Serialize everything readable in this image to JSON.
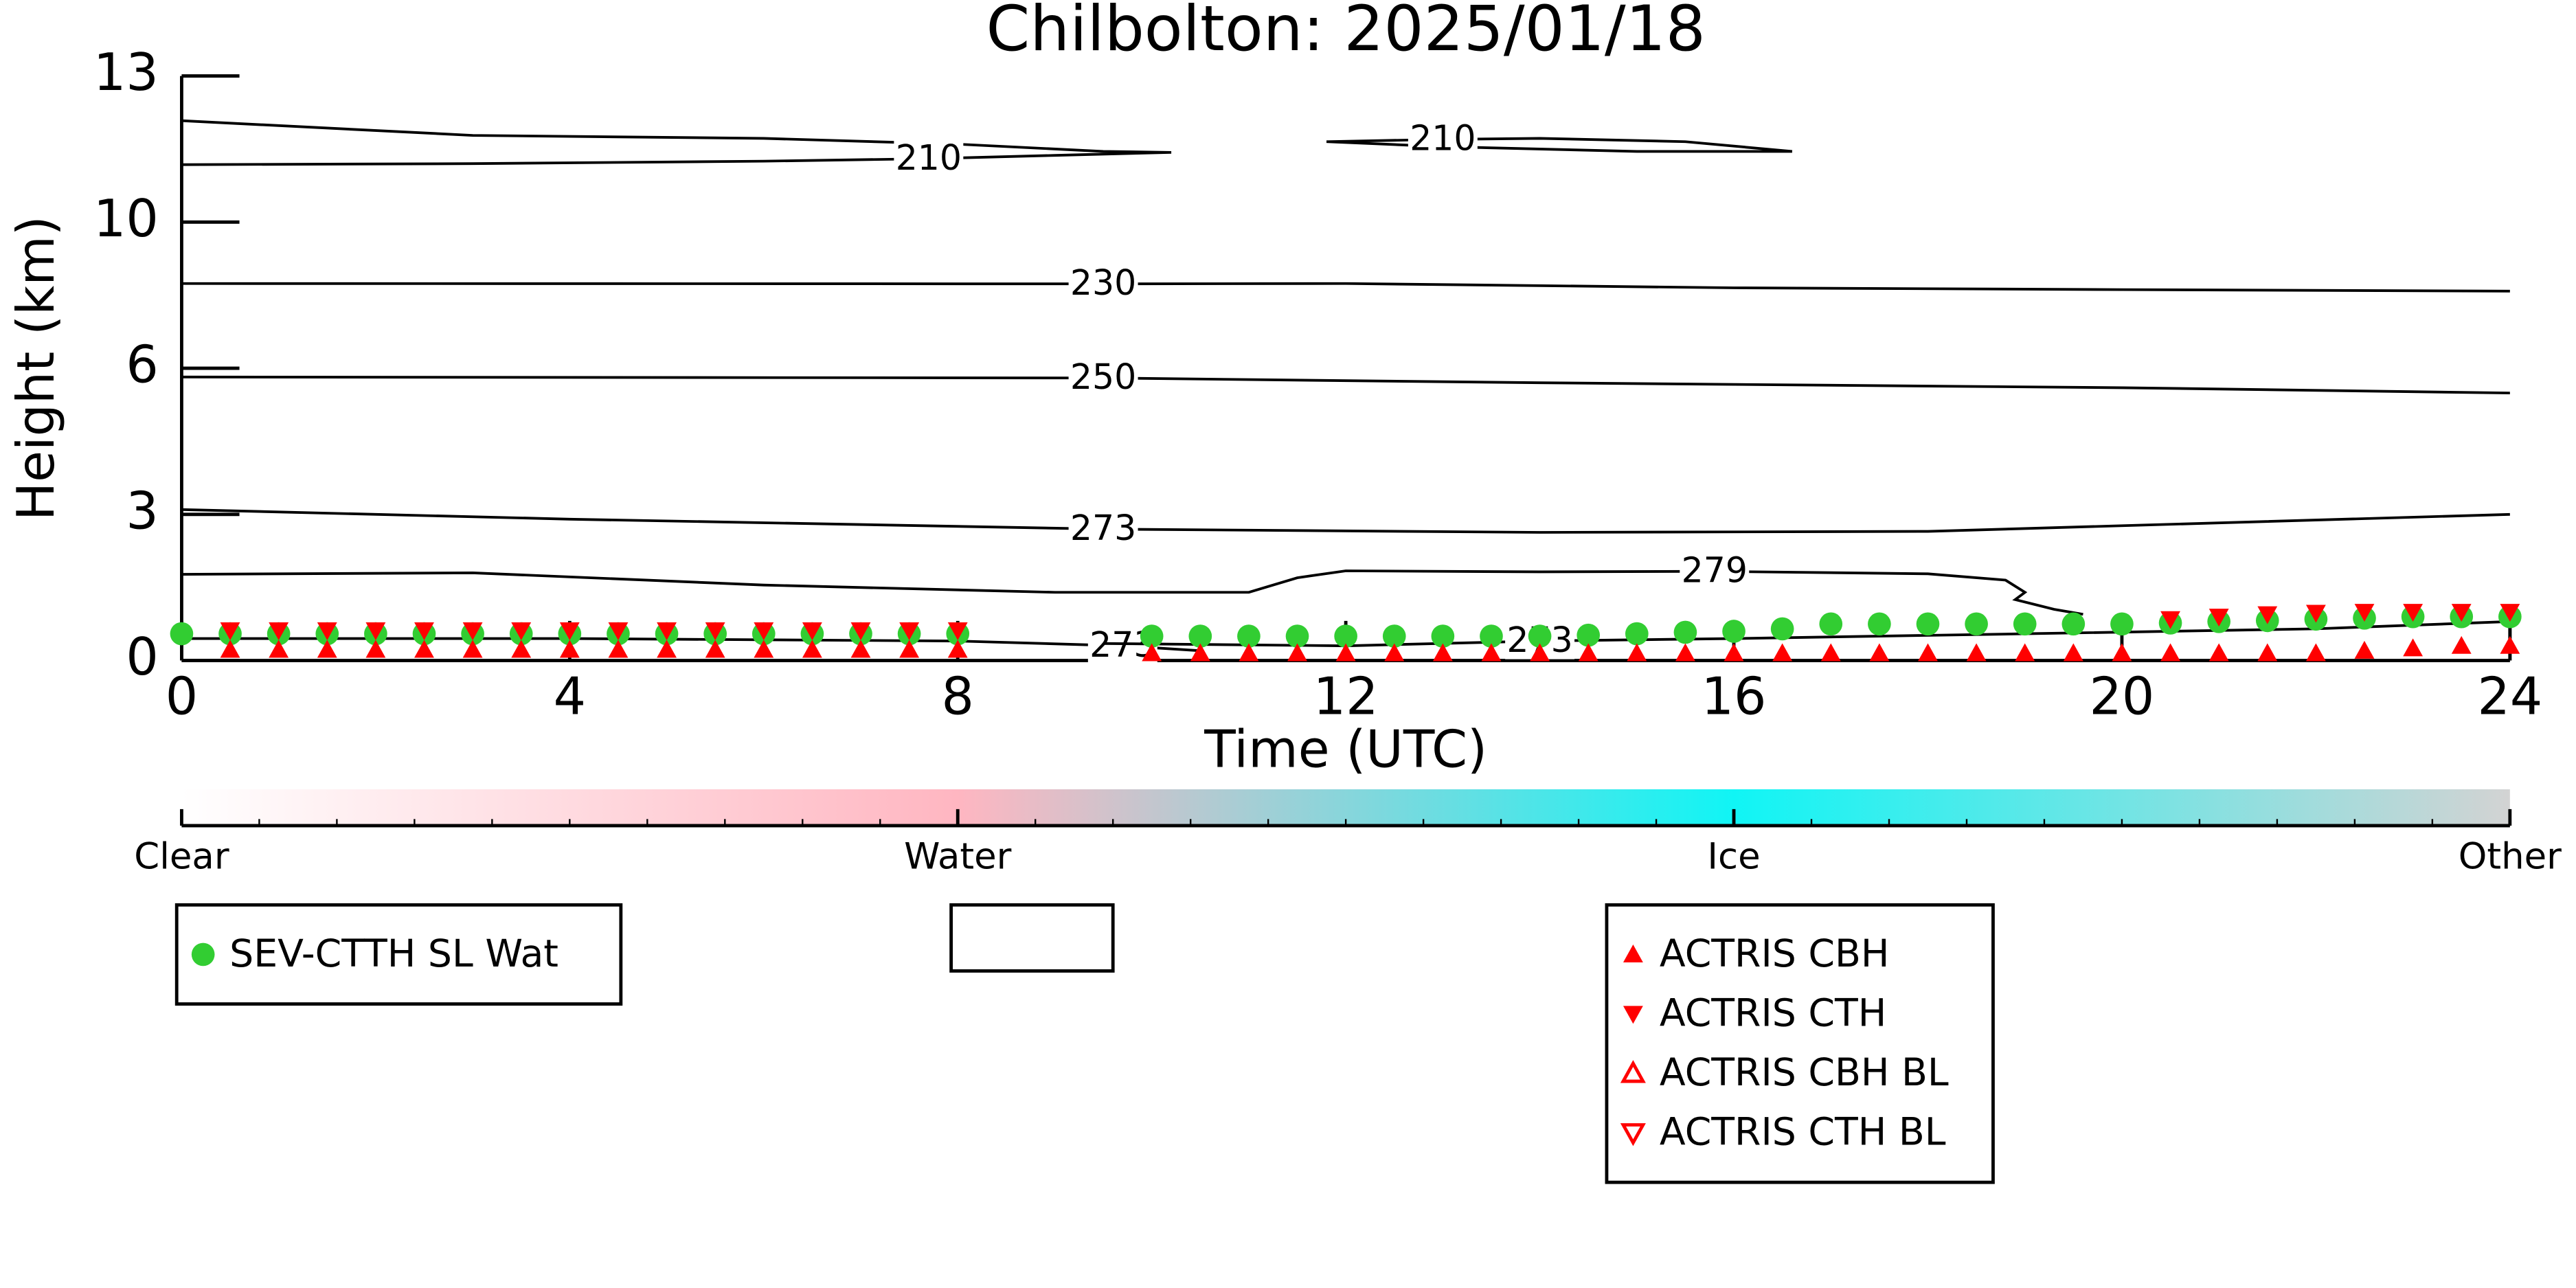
{
  "chart_data": {
    "type": "contour-scatter",
    "title": "Chilbolton: 2025/01/18",
    "xlabel": "Time (UTC)",
    "ylabel": "Height (km)",
    "xlim": [
      0,
      24
    ],
    "xticks": [
      0,
      4,
      8,
      12,
      16,
      20,
      24
    ],
    "ylim": [
      0,
      13
    ],
    "yticks": [
      0,
      3,
      6,
      10,
      13
    ],
    "yscale": "tick-spaced",
    "contour_color": "#000000",
    "contours": [
      {
        "level": 210,
        "x": [
          0,
          3,
          6,
          8,
          9.5,
          10.2,
          9,
          7.7,
          6,
          3,
          0
        ],
        "y": [
          12.08,
          11.78,
          11.72,
          11.6,
          11.45,
          11.43,
          11.37,
          11.3,
          11.25,
          11.2,
          11.18
        ]
      },
      {
        "level": 210,
        "x": [
          11.8,
          13,
          14,
          15.5,
          16.6,
          15,
          13,
          11.8
        ],
        "y": [
          11.65,
          11.7,
          11.72,
          11.65,
          11.45,
          11.45,
          11.55,
          11.65
        ]
      },
      {
        "level": 230,
        "x": [
          0,
          9.5,
          12,
          16,
          20,
          24
        ],
        "y": [
          8.32,
          8.31,
          8.32,
          8.2,
          8.15,
          8.11
        ]
      },
      {
        "level": 250,
        "x": [
          0,
          9.5,
          14,
          20,
          24
        ],
        "y": [
          5.82,
          5.8,
          5.7,
          5.6,
          5.49
        ]
      },
      {
        "level": 273,
        "x": [
          0,
          4,
          9.5,
          14,
          18,
          24
        ],
        "y": [
          3.1,
          2.9,
          2.7,
          2.63,
          2.65,
          3.0
        ]
      },
      {
        "level": 279,
        "x": [
          0,
          3,
          6,
          9,
          11,
          11.5,
          12,
          14,
          15.8,
          18,
          18.8,
          19.0,
          18.9,
          19.3,
          19.6
        ],
        "y": [
          1.77,
          1.8,
          1.55,
          1.4,
          1.4,
          1.7,
          1.84,
          1.82,
          1.83,
          1.78,
          1.65,
          1.4,
          1.25,
          1.05,
          0.95
        ]
      },
      {
        "level": 273,
        "x": [
          0,
          4,
          8,
          9.7,
          10.5
        ],
        "y": [
          0.45,
          0.45,
          0.4,
          0.3,
          0.2
        ]
      },
      {
        "level": 273,
        "x": [
          9.5,
          12,
          14,
          16,
          19,
          22,
          24
        ],
        "y": [
          0.35,
          0.3,
          0.4,
          0.45,
          0.55,
          0.65,
          0.8
        ]
      }
    ],
    "series": [
      {
        "name": "SEV-CTTH SL Wat",
        "color": "#32cd32",
        "marker": "circle",
        "filled": true,
        "x": [
          0,
          0.5,
          1,
          1.5,
          2,
          2.5,
          3,
          3.5,
          4,
          4.5,
          5,
          5.5,
          6,
          6.5,
          7,
          7.5,
          8,
          10,
          10.5,
          11,
          11.5,
          12,
          12.5,
          13,
          13.5,
          14,
          14.5,
          15,
          15.5,
          16,
          16.5,
          17,
          17.5,
          18,
          18.5,
          19,
          19.5,
          20,
          20.5,
          21,
          21.5,
          22,
          22.5,
          23,
          23.5,
          24
        ],
        "values": [
          0.55,
          0.55,
          0.55,
          0.55,
          0.55,
          0.55,
          0.55,
          0.55,
          0.55,
          0.55,
          0.55,
          0.55,
          0.55,
          0.55,
          0.55,
          0.55,
          0.55,
          0.5,
          0.5,
          0.5,
          0.5,
          0.5,
          0.5,
          0.5,
          0.5,
          0.5,
          0.52,
          0.55,
          0.58,
          0.6,
          0.65,
          0.75,
          0.75,
          0.75,
          0.75,
          0.75,
          0.75,
          0.75,
          0.77,
          0.8,
          0.82,
          0.85,
          0.87,
          0.9,
          0.9,
          0.9
        ]
      },
      {
        "name": "ACTRIS CBH",
        "color": "#ff0000",
        "marker": "triangle-up",
        "filled": true,
        "x": [
          0.5,
          1,
          1.5,
          2,
          2.5,
          3,
          3.5,
          4,
          4.5,
          5,
          5.5,
          6,
          6.5,
          7,
          7.5,
          8,
          10,
          10.5,
          11,
          11.5,
          12,
          12.5,
          13,
          13.5,
          14,
          14.5,
          15,
          15.5,
          16,
          16.5,
          17,
          17.5,
          18,
          18.5,
          19,
          19.5,
          20,
          20.5,
          21,
          21.5,
          22,
          22.5,
          23,
          23.5,
          24
        ],
        "values": [
          0.22,
          0.22,
          0.22,
          0.22,
          0.22,
          0.22,
          0.22,
          0.22,
          0.22,
          0.22,
          0.22,
          0.22,
          0.22,
          0.22,
          0.22,
          0.22,
          0.15,
          0.15,
          0.15,
          0.15,
          0.15,
          0.15,
          0.15,
          0.15,
          0.15,
          0.15,
          0.15,
          0.15,
          0.15,
          0.15,
          0.15,
          0.15,
          0.15,
          0.15,
          0.15,
          0.15,
          0.15,
          0.15,
          0.15,
          0.15,
          0.15,
          0.2,
          0.25,
          0.3,
          0.3
        ]
      },
      {
        "name": "ACTRIS CTH",
        "color": "#ff0000",
        "marker": "triangle-down",
        "filled": true,
        "x": [
          0.5,
          1,
          1.5,
          2,
          2.5,
          3,
          3.5,
          4,
          4.5,
          5,
          5.5,
          6,
          6.5,
          7,
          7.5,
          8,
          20.5,
          21,
          21.5,
          22,
          22.5,
          23,
          23.5,
          24
        ],
        "values": [
          0.62,
          0.62,
          0.62,
          0.62,
          0.62,
          0.62,
          0.62,
          0.62,
          0.62,
          0.62,
          0.62,
          0.62,
          0.62,
          0.62,
          0.62,
          0.62,
          0.85,
          0.9,
          0.95,
          0.98,
          1.0,
          1.0,
          1.0,
          1.0
        ]
      },
      {
        "name": "ACTRIS CBH BL",
        "color": "#ff0000",
        "marker": "triangle-up",
        "filled": false,
        "x": [],
        "values": []
      },
      {
        "name": "ACTRIS CTH BL",
        "color": "#ff0000",
        "marker": "triangle-down",
        "filled": false,
        "x": [],
        "values": []
      }
    ],
    "colorbar": {
      "labels": [
        "Clear",
        "Water",
        "Ice",
        "Other"
      ],
      "colors": [
        "#ffffff",
        "#ffb6c1",
        "#10f5f5",
        "#d3d3d3"
      ]
    }
  }
}
